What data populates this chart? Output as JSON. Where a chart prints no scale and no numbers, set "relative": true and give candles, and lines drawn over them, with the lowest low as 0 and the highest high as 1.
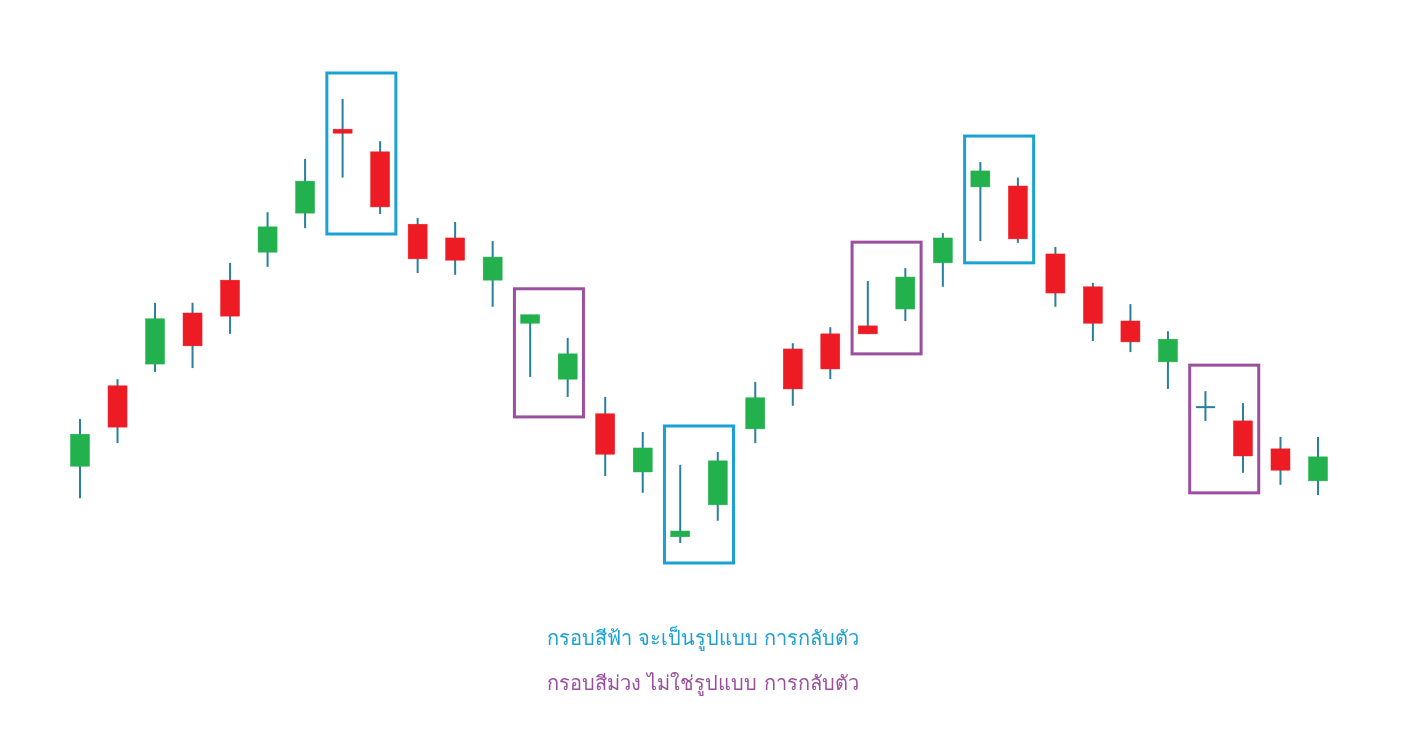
{
  "chart_data": {
    "type": "candlestick",
    "relative": true,
    "categories": [
      null,
      null,
      null,
      null,
      null,
      null,
      null,
      null,
      null,
      null,
      null,
      null,
      null,
      null,
      null,
      null,
      null,
      null,
      null,
      null,
      null,
      null,
      null,
      null,
      null,
      null,
      null,
      null,
      null,
      null,
      null,
      null,
      null,
      null
    ],
    "ohlc": [
      [
        0.173,
        0.279,
        0.101,
        0.245
      ],
      [
        0.354,
        0.369,
        0.225,
        0.261
      ],
      [
        0.403,
        0.541,
        0.385,
        0.505
      ],
      [
        0.518,
        0.541,
        0.394,
        0.444
      ],
      [
        0.592,
        0.631,
        0.471,
        0.511
      ],
      [
        0.655,
        0.745,
        0.622,
        0.712
      ],
      [
        0.743,
        0.865,
        0.709,
        0.815
      ],
      [
        0.932,
        1,
        0.823,
        0.923
      ],
      [
        0.881,
        0.905,
        0.741,
        0.757
      ],
      [
        0.718,
        0.732,
        0.608,
        0.64
      ],
      [
        0.687,
        0.723,
        0.604,
        0.637
      ],
      [
        0.592,
        0.68,
        0.532,
        0.644
      ],
      [
        0.495,
        0.514,
        0.374,
        0.514
      ],
      [
        0.369,
        0.462,
        0.329,
        0.426
      ],
      [
        0.291,
        0.329,
        0.151,
        0.2
      ],
      [
        0.16,
        0.25,
        0.113,
        0.214
      ],
      [
        0.014,
        0.176,
        0,
        0.027
      ],
      [
        0.086,
        0.205,
        0.05,
        0.185
      ],
      [
        0.257,
        0.363,
        0.225,
        0.327
      ],
      [
        0.437,
        0.45,
        0.309,
        0.347
      ],
      [
        0.471,
        0.486,
        0.369,
        0.392
      ],
      [
        0.489,
        0.59,
        0.471,
        0.471
      ],
      [
        0.527,
        0.619,
        0.5,
        0.599
      ],
      [
        0.631,
        0.698,
        0.577,
        0.687
      ],
      [
        0.802,
        0.858,
        0.68,
        0.838
      ],
      [
        0.804,
        0.823,
        0.676,
        0.685
      ],
      [
        0.651,
        0.667,
        0.532,
        0.563
      ],
      [
        0.577,
        0.586,
        0.455,
        0.495
      ],
      [
        0.5,
        0.538,
        0.43,
        0.453
      ],
      [
        0.408,
        0.477,
        0.347,
        0.459
      ],
      [
        0.306,
        0.342,
        0.275,
        0.306
      ],
      [
        0.275,
        0.315,
        0.158,
        0.196
      ],
      [
        0.212,
        0.239,
        0.131,
        0.164
      ],
      [
        0.14,
        0.239,
        0.108,
        0.194
      ]
    ],
    "colors": [
      "#22b14c",
      "#ed1c24",
      "#22b14c",
      "#ed1c24",
      "#ed1c24",
      "#22b14c",
      "#22b14c",
      "#ed1c24",
      "#ed1c24",
      "#ed1c24",
      "#ed1c24",
      "#22b14c",
      "#22b14c",
      "#22b14c",
      "#ed1c24",
      "#22b14c",
      "#22b14c",
      "#22b14c",
      "#22b14c",
      "#ed1c24",
      "#ed1c24",
      "#ed1c24",
      "#22b14c",
      "#22b14c",
      "#22b14c",
      "#ed1c24",
      "#ed1c24",
      "#ed1c24",
      "#ed1c24",
      "#22b14c",
      "#2a7f9e",
      "#ed1c24",
      "#ed1c24",
      "#22b14c"
    ],
    "annotations": [
      "กรอบสีฟ้า จะเป็นรูปแบบ การกลับตัว",
      "กรอบสีม่วง  ไม่ใช่รูปแบบ การกลับตัว"
    ]
  }
}
